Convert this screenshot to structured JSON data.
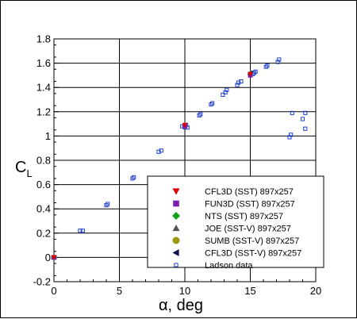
{
  "chart_data": {
    "type": "scatter",
    "xlabel": "α, deg",
    "ylabel": "C",
    "ylabel_subscript": "L",
    "xlim": [
      0,
      20
    ],
    "ylim": [
      -0.2,
      1.8
    ],
    "x_ticks": [
      0,
      5,
      10,
      15,
      20
    ],
    "y_ticks": [
      -0.2,
      0,
      0.2,
      0.4,
      0.6,
      0.8,
      1,
      1.2,
      1.4,
      1.6,
      1.8
    ],
    "x_tick_labels": [
      "0",
      "5",
      "10",
      "15",
      "20"
    ],
    "y_tick_labels": [
      "-0.2",
      "0",
      "0.2",
      "0.4",
      "0.6",
      "0.8",
      "1",
      "1.2",
      "1.4",
      "1.6",
      "1.8"
    ],
    "grid": "major",
    "legend_position": "lower-right",
    "series": [
      {
        "name": "CFL3D (SST) 897x257",
        "marker": "triangle-down",
        "color": "#dd0000",
        "points": [
          [
            0,
            0.0
          ],
          [
            10,
            1.09
          ],
          [
            15,
            1.51
          ]
        ]
      },
      {
        "name": "FUN3D (SST) 897x257",
        "marker": "square",
        "color": "#7a1fb0",
        "points": [
          [
            0,
            0.0
          ],
          [
            10,
            1.08
          ],
          [
            15,
            1.5
          ]
        ]
      },
      {
        "name": "NTS (SST) 897x257",
        "marker": "diamond",
        "color": "#11a011",
        "points": [
          [
            0,
            0.0
          ],
          [
            10,
            1.08
          ],
          [
            15,
            1.51
          ]
        ]
      },
      {
        "name": "JOE (SST-V) 897x257",
        "marker": "triangle-up",
        "color": "#555555",
        "points": [
          [
            0,
            0.0
          ],
          [
            10,
            1.09
          ],
          [
            15,
            1.52
          ]
        ]
      },
      {
        "name": "SUMB (SST-V) 897x257",
        "marker": "circle",
        "color": "#9a9a10",
        "points": [
          [
            0,
            0.0
          ],
          [
            10,
            1.08
          ],
          [
            15,
            1.51
          ]
        ]
      },
      {
        "name": "CFL3D (SST-V) 897x257",
        "marker": "triangle-left",
        "color": "#101050",
        "points": [
          [
            0,
            0.0
          ],
          [
            10,
            1.09
          ],
          [
            15,
            1.52
          ]
        ]
      },
      {
        "name": "Ladson data",
        "marker": "open-square",
        "color": "#2040d0",
        "points": [
          [
            -0.05,
            0.0
          ],
          [
            0.05,
            0.0
          ],
          [
            2.0,
            0.22
          ],
          [
            2.2,
            0.22
          ],
          [
            4.0,
            0.43
          ],
          [
            4.1,
            0.44
          ],
          [
            6.0,
            0.65
          ],
          [
            6.1,
            0.66
          ],
          [
            8.0,
            0.87
          ],
          [
            8.2,
            0.88
          ],
          [
            9.8,
            1.08
          ],
          [
            10.0,
            1.07
          ],
          [
            10.1,
            1.09
          ],
          [
            10.2,
            1.07
          ],
          [
            11.1,
            1.17
          ],
          [
            11.2,
            1.18
          ],
          [
            12.0,
            1.26
          ],
          [
            12.1,
            1.27
          ],
          [
            12.9,
            1.34
          ],
          [
            13.1,
            1.36
          ],
          [
            13.2,
            1.38
          ],
          [
            14.0,
            1.42
          ],
          [
            14.1,
            1.44
          ],
          [
            14.3,
            1.45
          ],
          [
            15.0,
            1.5
          ],
          [
            15.2,
            1.51
          ],
          [
            15.3,
            1.52
          ],
          [
            15.4,
            1.53
          ],
          [
            16.2,
            1.57
          ],
          [
            16.3,
            1.58
          ],
          [
            17.1,
            1.61
          ],
          [
            17.2,
            1.63
          ],
          [
            18.0,
            0.99
          ],
          [
            18.1,
            1.01
          ],
          [
            18.2,
            1.19
          ],
          [
            19.0,
            1.14
          ],
          [
            19.2,
            1.19
          ],
          [
            19.2,
            1.06
          ]
        ]
      }
    ]
  }
}
